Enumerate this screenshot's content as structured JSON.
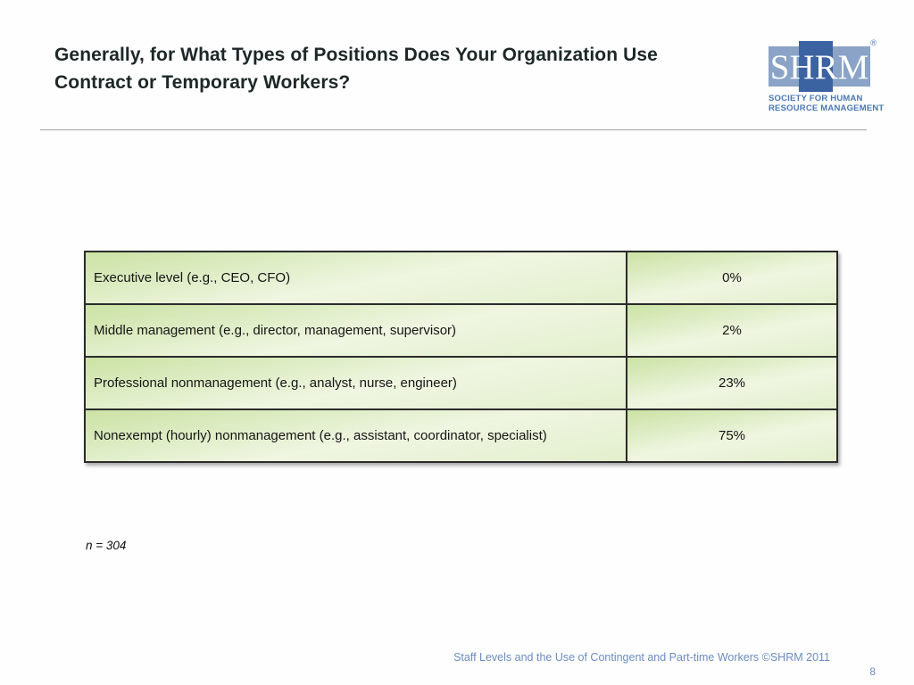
{
  "header": {
    "title_line1": "Generally, for What Types of Positions Does Your Organization Use",
    "title_line2": "Contract or Temporary Workers?"
  },
  "logo": {
    "acronym": "SHRM",
    "registered_mark": "®",
    "tagline_line1": "SOCIETY FOR HUMAN",
    "tagline_line2": "RESOURCE MANAGEMENT",
    "colors": {
      "band_light": "#8aa3c7",
      "band_dark": "#3b63a2",
      "text_blue": "#4a77b4"
    }
  },
  "table": {
    "rows": [
      {
        "label": "Executive level (e.g., CEO, CFO)",
        "value": "0%"
      },
      {
        "label": "Middle management (e.g., director, management, supervisor)",
        "value": "2%"
      },
      {
        "label": "Professional nonmanagement (e.g., analyst, nurse, engineer)",
        "value": "23%"
      },
      {
        "label": "Nonexempt (hourly) nonmanagement (e.g., assistant, coordinator, specialist)",
        "value": "75%"
      }
    ],
    "colors": {
      "cell_gradient_top": "#cbe2a4",
      "cell_gradient_light": "#eff6e1",
      "cell_gradient_bottom": "#e3efcd",
      "border": "#2b2b2b"
    }
  },
  "chart_data": {
    "type": "table",
    "title": "Generally, for What Types of Positions Does Your Organization Use Contract or Temporary Workers?",
    "categories": [
      "Executive level (e.g., CEO, CFO)",
      "Middle management (e.g., director, management, supervisor)",
      "Professional nonmanagement (e.g., analyst, nurse, engineer)",
      "Nonexempt (hourly) nonmanagement (e.g., assistant, coordinator, specialist)"
    ],
    "values": [
      0,
      2,
      23,
      75
    ],
    "value_format": "percent",
    "sample_size_note": "n = 304"
  },
  "note": "n = 304",
  "footer": {
    "citation": "Staff Levels and the Use of Contingent and Part-time Workers ©SHRM 2011",
    "page_number": "8"
  }
}
